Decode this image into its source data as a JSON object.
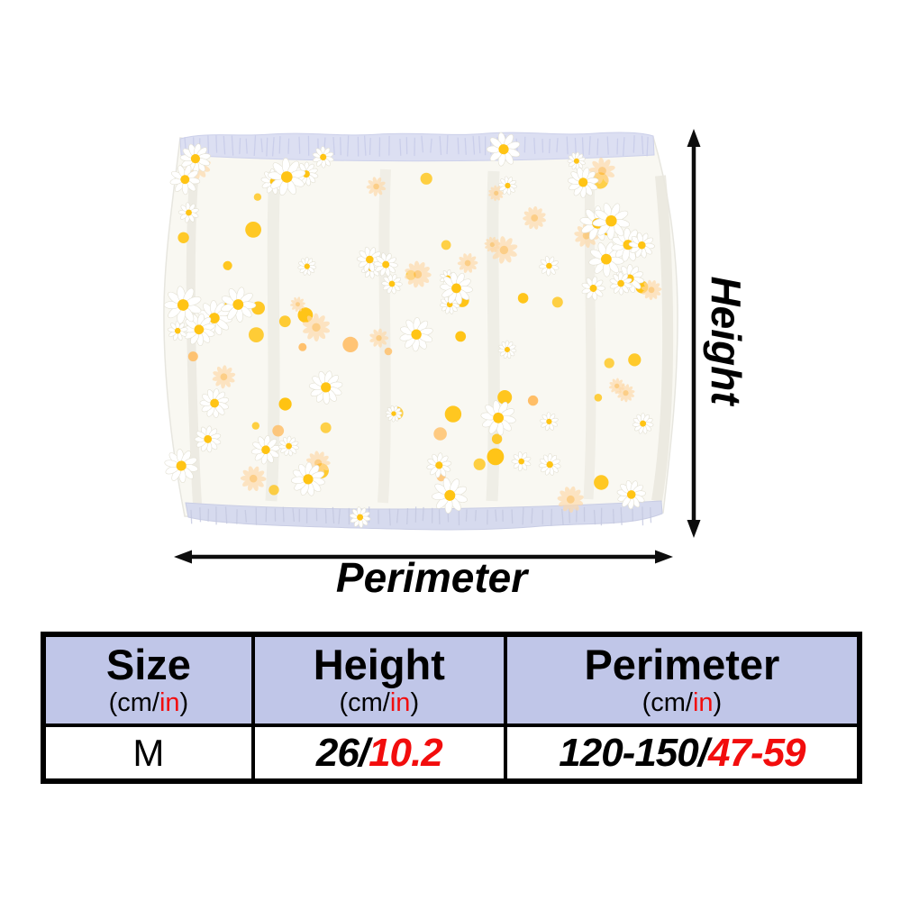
{
  "figure": {
    "height_label": "Height",
    "perimeter_label": "Perimeter",
    "pattern_name": "daisy-print-sheer-fabric",
    "colors": {
      "fabric": "#f9f8f2",
      "band": "#dcdff2",
      "band_bottom": "#d6daee",
      "stitch": "#c8cce9",
      "petal": "#ffffff",
      "petal_edge": "#e3e0d2",
      "center": "#ffc415",
      "dot": "#ffc312",
      "dot_pale": "#ffbc62",
      "pale_petal": "#ffd9a8",
      "pale_center": "#ffb94e",
      "fold": "#ebe9e0",
      "arrow": "#0d0d0d"
    }
  },
  "table": {
    "header_bg": "#c0c6e8",
    "accent_red": "#f20d0d",
    "columns": [
      {
        "title": "Size",
        "unit_prefix": "(cm/",
        "unit_accent": "in",
        "unit_suffix": ")"
      },
      {
        "title": "Height",
        "unit_prefix": "(cm/",
        "unit_accent": "in",
        "unit_suffix": ")"
      },
      {
        "title": "Perimeter",
        "unit_prefix": "(cm/",
        "unit_accent": "in",
        "unit_suffix": ")"
      }
    ],
    "rows": [
      {
        "size": "M",
        "height_main": "26/",
        "height_accent": "10.2",
        "perimeter_main": "120-150/",
        "perimeter_accent": "47-59"
      }
    ]
  }
}
